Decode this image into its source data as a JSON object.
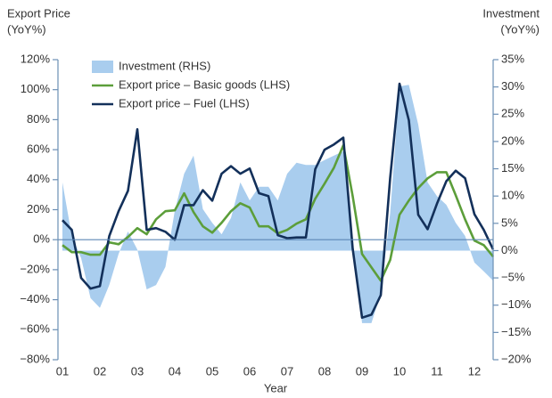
{
  "chart_data": {
    "type": "line",
    "y_label": [
      "Export Price",
      "(YoY%)"
    ],
    "y2_label": [
      "Investment",
      "(YoY%)"
    ],
    "x_label": "Year",
    "xlim": [
      2000.88,
      2012.5
    ],
    "xticks": [
      {
        "value": 2001,
        "label": "01"
      },
      {
        "value": 2002,
        "label": "02"
      },
      {
        "value": 2003,
        "label": "03"
      },
      {
        "value": 2004,
        "label": "04"
      },
      {
        "value": 2005,
        "label": "05"
      },
      {
        "value": 2006,
        "label": "06"
      },
      {
        "value": 2007,
        "label": "07"
      },
      {
        "value": 2008,
        "label": "08"
      },
      {
        "value": 2009,
        "label": "09"
      },
      {
        "value": 2010,
        "label": "10"
      },
      {
        "value": 2011,
        "label": "11"
      },
      {
        "value": 2012,
        "label": "12"
      }
    ],
    "ylim": [
      -80,
      120
    ],
    "yticks": [
      {
        "value": 120,
        "label": "120%"
      },
      {
        "value": 100,
        "label": "100%"
      },
      {
        "value": 80,
        "label": "80%"
      },
      {
        "value": 60,
        "label": "60%"
      },
      {
        "value": 40,
        "label": "40%"
      },
      {
        "value": 20,
        "label": "20%"
      },
      {
        "value": 0,
        "label": "0%"
      },
      {
        "value": -20,
        "label": "−20%"
      },
      {
        "value": -40,
        "label": "−40%"
      },
      {
        "value": -60,
        "label": "−60%"
      },
      {
        "value": -80,
        "label": "−80%"
      }
    ],
    "y2lim": [
      -20,
      35
    ],
    "y2ticks": [
      {
        "value": 35,
        "label": "35%"
      },
      {
        "value": 30,
        "label": "30%"
      },
      {
        "value": 25,
        "label": "25%"
      },
      {
        "value": 20,
        "label": "20%"
      },
      {
        "value": 15,
        "label": "15%"
      },
      {
        "value": 10,
        "label": "10%"
      },
      {
        "value": 5,
        "label": "5%"
      },
      {
        "value": 0,
        "label": "0%"
      },
      {
        "value": -5,
        "label": "−5%"
      },
      {
        "value": -10,
        "label": "−10%"
      },
      {
        "value": -15,
        "label": "−15%"
      },
      {
        "value": -20,
        "label": "−20%"
      }
    ],
    "x": [
      2001,
      2001.25,
      2001.5,
      2001.75,
      2002,
      2002.25,
      2002.5,
      2002.75,
      2003,
      2003.25,
      2003.5,
      2003.75,
      2004,
      2004.25,
      2004.5,
      2004.75,
      2005,
      2005.25,
      2005.5,
      2005.75,
      2006,
      2006.25,
      2006.5,
      2006.75,
      2007,
      2007.25,
      2007.5,
      2007.75,
      2008,
      2008.25,
      2008.5,
      2008.75,
      2009,
      2009.25,
      2009.5,
      2009.75,
      2010,
      2010.25,
      2010.5,
      2010.75,
      2011,
      2011.25,
      2011.5,
      2011.75,
      2012,
      2012.25,
      2012.5
    ],
    "series": [
      {
        "name": "Investment (RHS)",
        "color": "#a9cdee",
        "axis": "y2",
        "style": "area",
        "values": [
          12.5,
          2.7,
          -1.4,
          -8.7,
          -10.5,
          -6.3,
          -0.6,
          3.5,
          0.2,
          -7.1,
          -6.3,
          -3,
          7.3,
          14.1,
          17.4,
          7.6,
          5.1,
          3,
          6,
          12.5,
          9.2,
          11.7,
          11.7,
          9.2,
          14.1,
          16.1,
          15.7,
          15.7,
          16.6,
          17.4,
          18.2,
          1.9,
          -13.3,
          -13.3,
          -7.9,
          6.8,
          30.1,
          30.4,
          23.1,
          12.5,
          10,
          8.4,
          5.1,
          2.7,
          -2.2,
          -3.8,
          -5.5
        ]
      },
      {
        "name": "Export price – Basic goods (LHS)",
        "color": "#5c9e3a",
        "style": "line",
        "values": [
          -3.6,
          -8.3,
          -8.3,
          -10,
          -10,
          -1.8,
          -3,
          1.8,
          7.7,
          3.6,
          13.6,
          19,
          19.6,
          30.9,
          18.4,
          8.9,
          4.7,
          11.3,
          19,
          24.3,
          21.4,
          8.9,
          8.9,
          4.2,
          6.5,
          10.7,
          13.6,
          27.3,
          37.4,
          48,
          62.9,
          29,
          -9.5,
          -18.4,
          -27.3,
          -13.6,
          16.6,
          26.1,
          34.4,
          40.9,
          45,
          45,
          29.7,
          13.6,
          -0.6,
          -3.6,
          -11.3
        ]
      },
      {
        "name": "Export price – Fuel (LHS)",
        "color": "#13305a",
        "style": "line",
        "values": [
          13,
          6.5,
          -25.5,
          -32.6,
          -31,
          2.4,
          19,
          32.6,
          73.6,
          6.5,
          7.7,
          5.3,
          0,
          23,
          23,
          33,
          26,
          44,
          49,
          44,
          47.5,
          31,
          29,
          3,
          1,
          1.5,
          1.5,
          47,
          60,
          63.5,
          68,
          -6,
          -52,
          -50,
          -37,
          41,
          104,
          79.5,
          16.6,
          7,
          24,
          39,
          46,
          41,
          17,
          6.5,
          -6.5
        ]
      }
    ]
  }
}
